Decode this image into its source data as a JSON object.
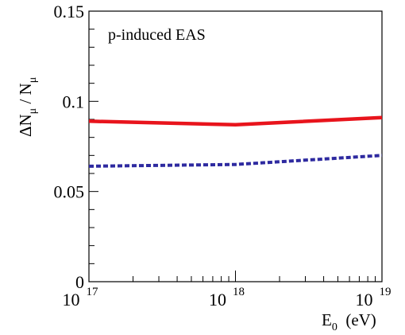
{
  "chart_data": {
    "type": "line",
    "annotation": "p-induced EAS",
    "xlabel": {
      "main": "E",
      "sub": "0",
      "rest": "  (eV)"
    },
    "ylabel": {
      "delta": "Δ",
      "n1": "N",
      "sub1": "μ",
      "slash": " / ",
      "n2": "N",
      "sub2": "μ"
    },
    "x_scale": "log",
    "xlim": [
      1e+17,
      1e+19
    ],
    "ylim": [
      0,
      0.15
    ],
    "x_ticks": [
      {
        "value": 1e+17,
        "base": "10",
        "exp": "17"
      },
      {
        "value": 1e+18,
        "base": "10",
        "exp": "18"
      },
      {
        "value": 1e+19,
        "base": "10",
        "exp": "19"
      }
    ],
    "y_ticks": [
      {
        "value": 0,
        "label": "0"
      },
      {
        "value": 0.05,
        "label": "0.05"
      },
      {
        "value": 0.1,
        "label": "0.1"
      },
      {
        "value": 0.15,
        "label": "0.15"
      }
    ],
    "grid": false,
    "series": [
      {
        "style": "solid",
        "color": "#e8141c",
        "x": [
          1e+17,
          1e+18,
          1e+19
        ],
        "y": [
          0.089,
          0.087,
          0.091
        ]
      },
      {
        "style": "dotted",
        "color": "#2e2aa0",
        "x": [
          1e+17,
          1e+18,
          1e+19
        ],
        "y": [
          0.064,
          0.065,
          0.07
        ]
      }
    ]
  }
}
